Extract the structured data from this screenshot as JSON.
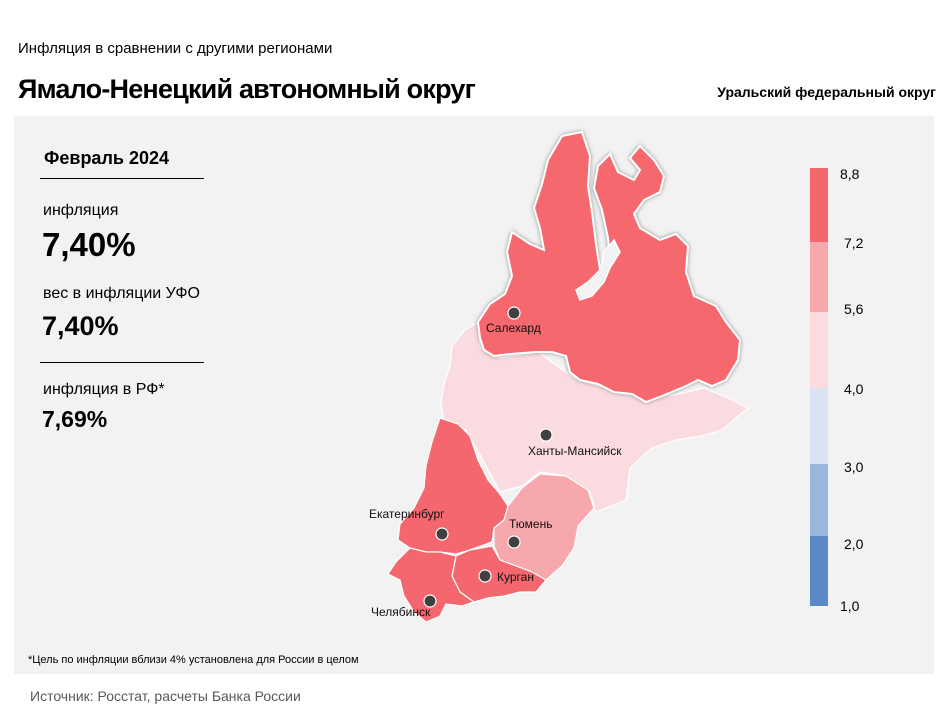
{
  "header": {
    "subtitle": "Инфляция  в сравнении  с другими  регионами",
    "title": "Ямало-Ненецкий автономный округ",
    "district": "Уральский федеральный округ"
  },
  "stats": {
    "period": "Февраль 2024",
    "inflation_label": "инфляция",
    "inflation_value": "7,40%",
    "weight_label": "вес в инфляции  УФО",
    "weight_value": "7,40%",
    "rf_label": "инфляция  в РФ*",
    "rf_value": "7,69%"
  },
  "map": {
    "regions": [
      {
        "name": "Ямало-Ненецкий автономный округ",
        "inflation_band": "7,2–8,8",
        "color": "#f4676e"
      },
      {
        "name": "Ханты-Мансийский автономный округ",
        "inflation_band": "4,0–5,6",
        "color": "#fadbe0"
      },
      {
        "name": "Свердловская область",
        "inflation_band": "7,2–8,8",
        "color": "#f4676e"
      },
      {
        "name": "Тюменская область",
        "inflation_band": "5,6–7,2",
        "color": "#f7a8ad"
      },
      {
        "name": "Курганская область",
        "inflation_band": "7,2–8,8",
        "color": "#f4676e"
      },
      {
        "name": "Челябинская область",
        "inflation_band": "7,2–8,8",
        "color": "#f4676e"
      }
    ],
    "cities": {
      "salekhard": "Салехард",
      "khanty": "Ханты-Мансийск",
      "ekb": "Екатеринбург",
      "tyumen": "Тюмень",
      "kurgan": "Курган",
      "chel": "Челябинск"
    }
  },
  "legend": {
    "ticks": [
      "8,8",
      "7,2",
      "5,6",
      "4,0",
      "3,0",
      "2,0",
      "1,0"
    ],
    "colors": [
      "#f4676e",
      "#f7a8ad",
      "#fadbe0",
      "#dae3f3",
      "#9cb7dc",
      "#5b8ac6"
    ]
  },
  "footnote": "*Цель по инфляции вблизи 4% установлена для России в целом",
  "source": "Источник: Росстат, расчеты Банка России"
}
